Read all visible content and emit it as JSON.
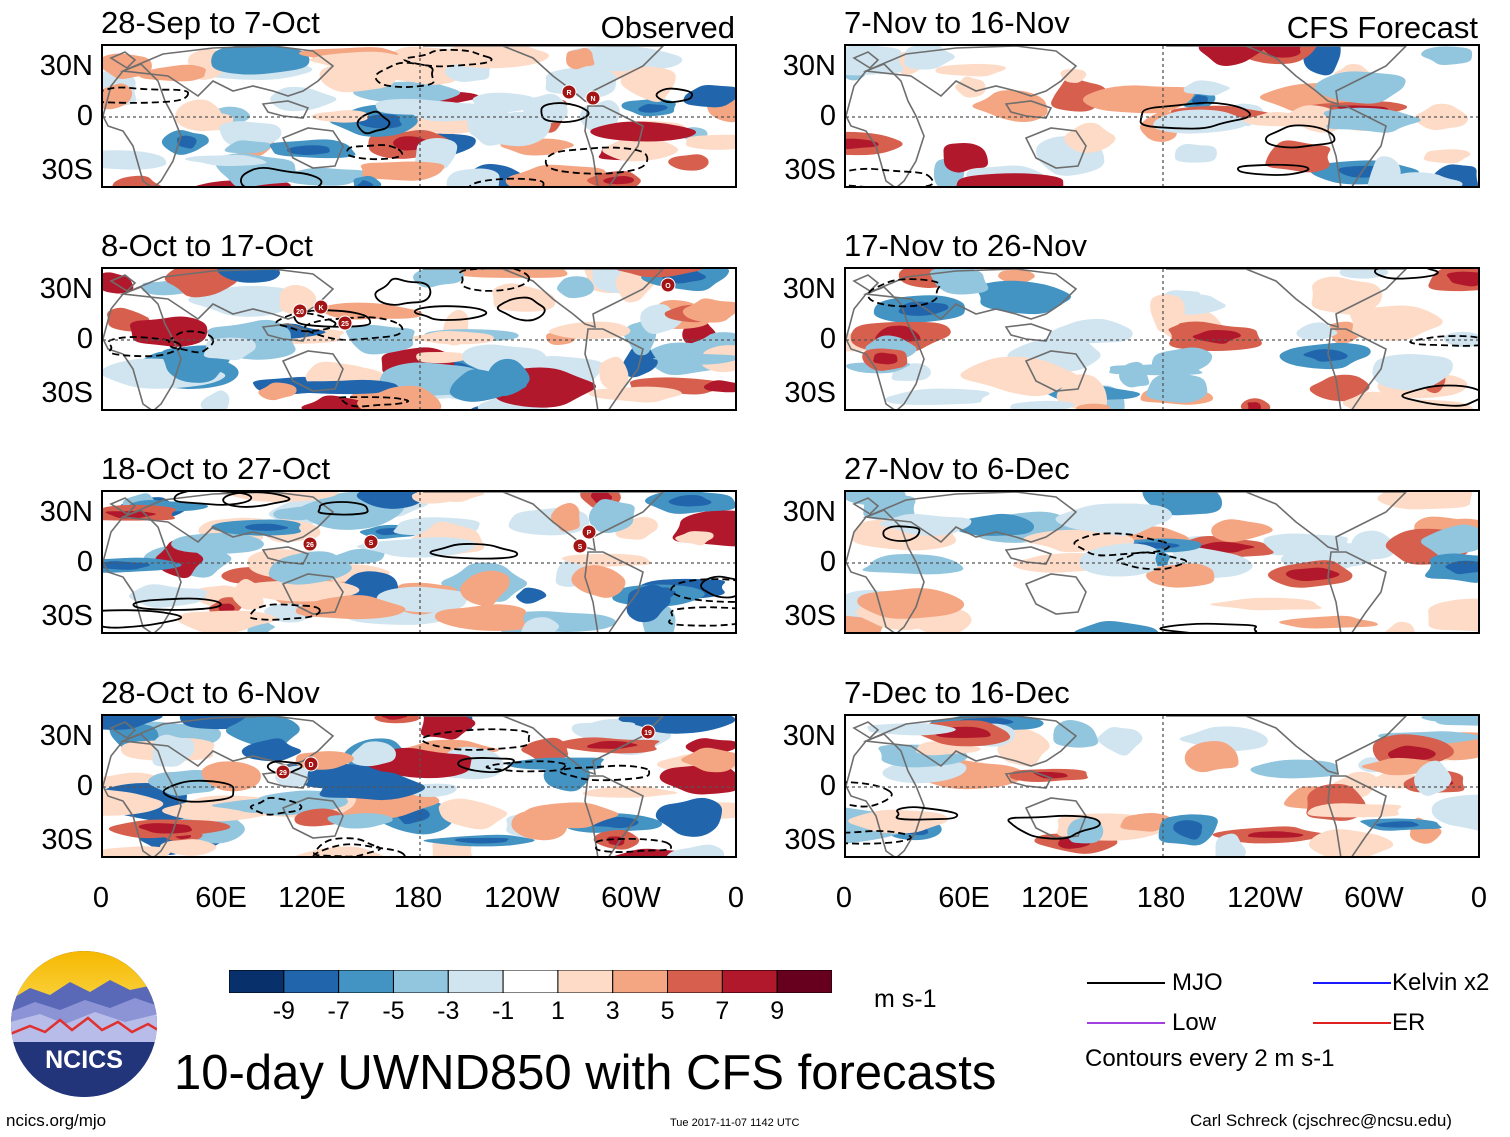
{
  "panels": [
    {
      "title": "28-Sep to 7-Oct",
      "source": "Observed"
    },
    {
      "title": "8-Oct to 17-Oct",
      "source": ""
    },
    {
      "title": "18-Oct to 27-Oct",
      "source": ""
    },
    {
      "title": "28-Oct to 6-Nov",
      "source": ""
    },
    {
      "title": "7-Nov to 16-Nov",
      "source": "CFS Forecast"
    },
    {
      "title": "17-Nov to 26-Nov",
      "source": ""
    },
    {
      "title": "27-Nov to 6-Dec",
      "source": ""
    },
    {
      "title": "7-Dec to 16-Dec",
      "source": ""
    }
  ],
  "lat_labels": [
    "30N",
    "0",
    "30S"
  ],
  "lon_labels": [
    "0",
    "60E",
    "120E",
    "180",
    "120W",
    "60W",
    "0"
  ],
  "colorbar": {
    "colors": [
      "#08306b",
      "#2166ac",
      "#4393c3",
      "#92c5de",
      "#d1e5f0",
      "#ffffff",
      "#fddbc7",
      "#f4a582",
      "#d6604d",
      "#b2182b",
      "#67001f"
    ],
    "labels": [
      "-9",
      "-7",
      "-5",
      "-3",
      "-1",
      "1",
      "3",
      "5",
      "7",
      "9"
    ],
    "units": "m s-1"
  },
  "legend": [
    {
      "label": "MJO",
      "color": "#000000"
    },
    {
      "label": "Kelvin x2",
      "color": "#1a1aff"
    },
    {
      "label": "Low",
      "color": "#a040e0"
    },
    {
      "label": "ER",
      "color": "#e02020"
    }
  ],
  "contour_note": "Contours every 2 m s-1",
  "main_title": "10-day UWND850 with CFS forecasts",
  "logo_text": "NCICS",
  "footer": {
    "url": "ncics.org/mjo",
    "timestamp": "Tue 2017-11-07 1142 UTC",
    "credit": "Carl Schreck (cjschrec@ncsu.edu)"
  },
  "storms": [
    [
      {
        "label": "R"
      },
      {
        "label": "N"
      }
    ],
    [
      {
        "label": "20"
      },
      {
        "label": "K"
      },
      {
        "label": "25"
      },
      {
        "label": "O"
      }
    ],
    [
      {
        "label": "26"
      },
      {
        "label": "S"
      },
      {
        "label": "P"
      },
      {
        "label": "S"
      }
    ],
    [
      {
        "label": "29"
      },
      {
        "label": "D"
      },
      {
        "label": "19"
      }
    ],
    [],
    [],
    [],
    []
  ]
}
